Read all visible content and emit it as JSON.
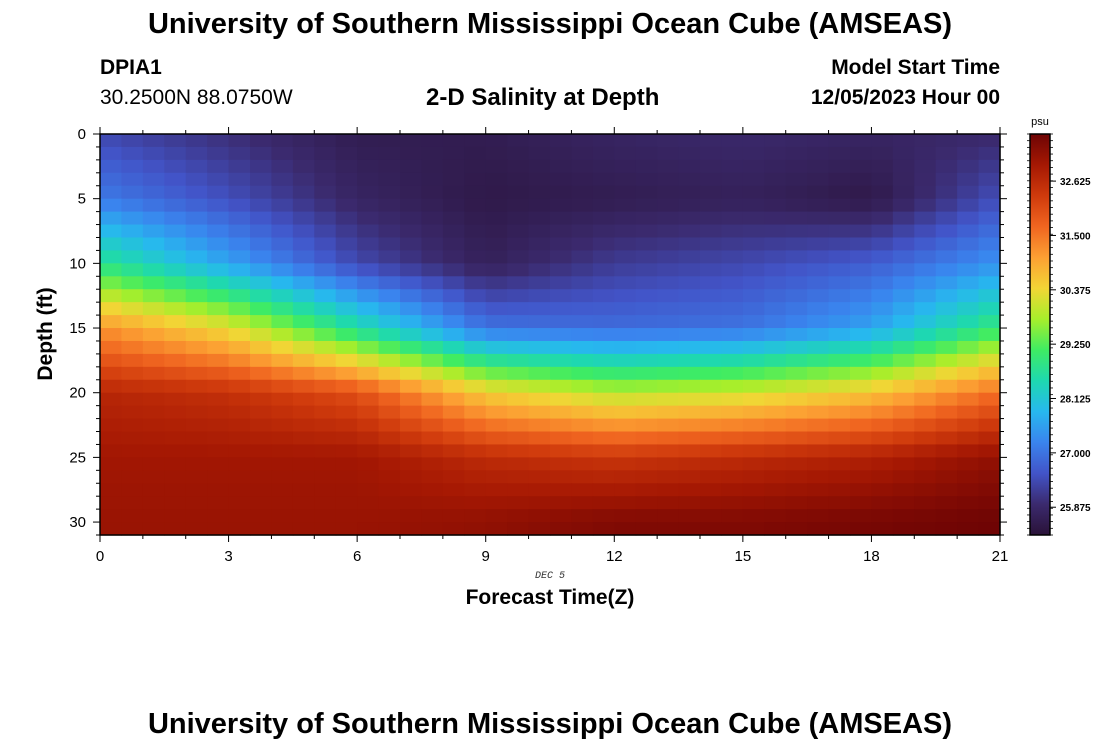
{
  "header": {
    "title": "University of Southern Mississippi Ocean Cube (AMSEAS)",
    "station_id": "DPIA1",
    "station_coords": "30.2500N  88.0750W",
    "chart_title": "2-D Salinity at Depth",
    "model_label": "Model Start Time",
    "model_time": "12/05/2023 Hour 00"
  },
  "footer": {
    "title": "University of Southern Mississippi Ocean Cube (AMSEAS)"
  },
  "chart_data": {
    "type": "heatmap",
    "title": "2-D Salinity at Depth",
    "xlabel": "Forecast Time(Z)",
    "ylabel": "Depth (ft)",
    "x_date_label": "DEC 5",
    "xlim": [
      0,
      21
    ],
    "ylim": [
      0,
      31
    ],
    "y_inverted": true,
    "x_ticks": [
      0,
      3,
      6,
      9,
      12,
      15,
      18,
      21
    ],
    "y_ticks": [
      0,
      5,
      10,
      15,
      20,
      25,
      30
    ],
    "colorbar": {
      "unit": "psu",
      "ticks": [
        "25.875",
        "27.000",
        "28.125",
        "29.250",
        "30.375",
        "31.500",
        "32.625"
      ],
      "vmin": 25.3,
      "vmax": 33.6,
      "colors": [
        "#2a1238",
        "#3b2a6e",
        "#4254c8",
        "#3a84ee",
        "#27b8ee",
        "#1ed8b0",
        "#3fec63",
        "#a7ee2b",
        "#f2d535",
        "#fca033",
        "#f06520",
        "#cf3a0c",
        "#a51803",
        "#6e0404"
      ]
    },
    "x": [
      0,
      3,
      6,
      9,
      12,
      15,
      18,
      21
    ],
    "depths": [
      0,
      5,
      10,
      15,
      20,
      25,
      30
    ],
    "series": [
      {
        "name": "Depth 0 ft",
        "values": [
          26.4,
          26.0,
          25.6,
          25.6,
          25.8,
          25.9,
          25.8,
          25.9
        ]
      },
      {
        "name": "Depth 5 ft",
        "values": [
          27.1,
          26.5,
          25.8,
          25.5,
          25.6,
          25.7,
          25.5,
          26.5
        ]
      },
      {
        "name": "Depth 10 ft",
        "values": [
          28.8,
          27.6,
          26.4,
          25.7,
          26.2,
          26.4,
          26.7,
          27.4
        ]
      },
      {
        "name": "Depth 15 ft",
        "values": [
          31.2,
          30.3,
          28.6,
          27.0,
          26.9,
          27.0,
          27.6,
          29.0
        ]
      },
      {
        "name": "Depth 20 ft",
        "values": [
          32.7,
          32.5,
          32.0,
          30.5,
          29.9,
          30.1,
          30.6,
          31.6
        ]
      },
      {
        "name": "Depth 25 ft",
        "values": [
          33.0,
          33.0,
          33.0,
          32.6,
          32.4,
          32.6,
          32.8,
          33.2
        ]
      },
      {
        "name": "Depth 30 ft",
        "values": [
          33.1,
          33.1,
          33.1,
          33.2,
          33.4,
          33.4,
          33.5,
          33.6
        ]
      }
    ]
  }
}
